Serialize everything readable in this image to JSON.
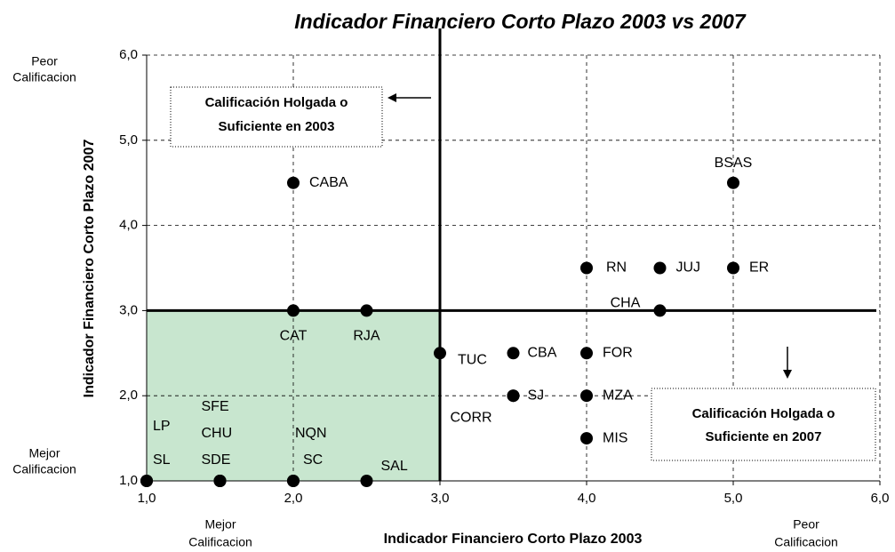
{
  "chart_data": {
    "type": "scatter",
    "title": "Indicador Financiero Corto Plazo 2003 vs 2007",
    "xlabel": "Indicador Financiero Corto Plazo 2003",
    "ylabel": "Indicador Financiero Corto Plazo 2007",
    "y_top_note": [
      "Peor",
      "Calificacion"
    ],
    "y_bottom_note": [
      "Mejor",
      "Calificacion"
    ],
    "x_left_note": [
      "Mejor",
      "Calificacion"
    ],
    "x_right_note": [
      "Peor",
      "Calificacion"
    ],
    "annotations": [
      [
        "Calificación Holgada o",
        "Suficiente en 2003"
      ],
      [
        "Calificación Holgada o",
        "Suficiente en 2007"
      ]
    ],
    "threshold_x": 3,
    "threshold_y": 3,
    "color": "#000000",
    "region_color": "#c8e6cf",
    "xlim": [
      1,
      6
    ],
    "ylim": [
      1,
      6
    ],
    "xticks": [
      {
        "value": 1,
        "label": "1,0"
      },
      {
        "value": 2,
        "label": "2,0"
      },
      {
        "value": 3,
        "label": "3,0"
      },
      {
        "value": 4,
        "label": "4,0"
      },
      {
        "value": 5,
        "label": "5,0"
      },
      {
        "value": 6,
        "label": "6,0"
      }
    ],
    "yticks": [
      {
        "value": 1,
        "label": "1,0"
      },
      {
        "value": 2,
        "label": "2,0"
      },
      {
        "value": 3,
        "label": "3,0"
      },
      {
        "value": 4,
        "label": "4,0"
      },
      {
        "value": 5,
        "label": "5,0"
      },
      {
        "value": 6,
        "label": "6,0"
      }
    ],
    "grid": true,
    "points": [
      {
        "label": "CABA",
        "x": 2,
        "y": 4.5
      },
      {
        "label": "BSAS",
        "x": 5,
        "y": 4.5
      },
      {
        "label": "RN",
        "x": 4,
        "y": 3.5
      },
      {
        "label": "JUJ",
        "x": 4.5,
        "y": 3.5
      },
      {
        "label": "ER",
        "x": 5,
        "y": 3.5
      },
      {
        "label": "CHA",
        "x": 4.5,
        "y": 3
      },
      {
        "label": "CAT",
        "x": 2,
        "y": 3
      },
      {
        "label": "RJA",
        "x": 2.5,
        "y": 3
      },
      {
        "label": "TUC",
        "x": 3,
        "y": 2.5
      },
      {
        "label": "CBA",
        "x": 3.5,
        "y": 2.5
      },
      {
        "label": "FOR",
        "x": 4,
        "y": 2.5
      },
      {
        "label": "SJ",
        "x": 3.5,
        "y": 2
      },
      {
        "label": "CORR",
        "x": 3.5,
        "y": 2
      },
      {
        "label": "MZA",
        "x": 4,
        "y": 2
      },
      {
        "label": "MIS",
        "x": 4,
        "y": 1.5
      },
      {
        "label": "LP",
        "x": 1,
        "y": 1
      },
      {
        "label": "SL",
        "x": 1,
        "y": 1
      },
      {
        "label": "SFE",
        "x": 1.5,
        "y": 1
      },
      {
        "label": "CHU",
        "x": 1.5,
        "y": 1
      },
      {
        "label": "SDE",
        "x": 1.5,
        "y": 1
      },
      {
        "label": "NQN",
        "x": 2,
        "y": 1
      },
      {
        "label": "SC",
        "x": 2,
        "y": 1
      },
      {
        "label": "SAL",
        "x": 2.5,
        "y": 1
      }
    ]
  }
}
